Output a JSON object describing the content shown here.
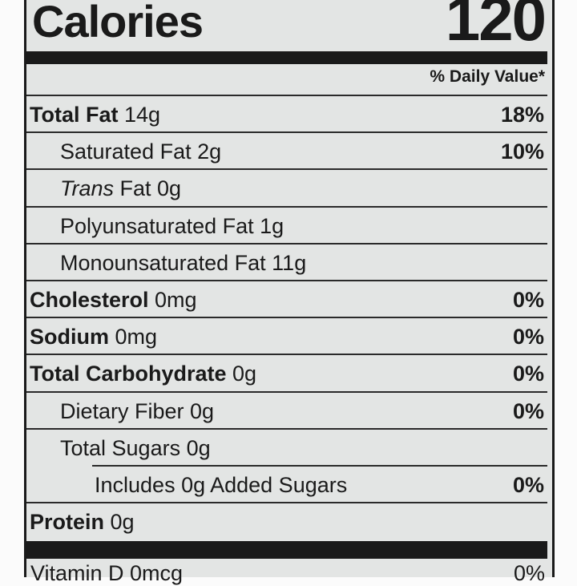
{
  "calories": {
    "label": "Calories",
    "value": "120"
  },
  "daily_value_header": "% Daily Value*",
  "rows": [
    {
      "bold": "Total Fat",
      "rest": " 14g",
      "pct": "18%",
      "indent": 0
    },
    {
      "bold": "",
      "rest": "Saturated Fat 2g",
      "pct": "10%",
      "indent": 1
    },
    {
      "italic": "Trans",
      "rest": " Fat 0g",
      "pct": "",
      "indent": 1
    },
    {
      "bold": "",
      "rest": "Polyunsaturated Fat 1g",
      "pct": "",
      "indent": 1
    },
    {
      "bold": "",
      "rest": "Monounsaturated Fat 11g",
      "pct": "",
      "indent": 1
    },
    {
      "bold": "Cholesterol",
      "rest": " 0mg",
      "pct": "0%",
      "indent": 0
    },
    {
      "bold": "Sodium",
      "rest": " 0mg",
      "pct": "0%",
      "indent": 0
    },
    {
      "bold": "Total Carbohydrate",
      "rest": " 0g",
      "pct": "0%",
      "indent": 0
    },
    {
      "bold": "",
      "rest": "Dietary Fiber 0g",
      "pct": "0%",
      "indent": 1
    },
    {
      "bold": "",
      "rest": "Total Sugars 0g",
      "pct": "",
      "indent": 1
    },
    {
      "bold": "",
      "rest": "Includes 0g Added Sugars",
      "pct": "0%",
      "indent": 2
    },
    {
      "bold": "Protein",
      "rest": " 0g",
      "pct": "",
      "indent": 0
    }
  ],
  "vitamin_d": {
    "label": "Vitamin D 0mcg",
    "pct": "0%"
  }
}
